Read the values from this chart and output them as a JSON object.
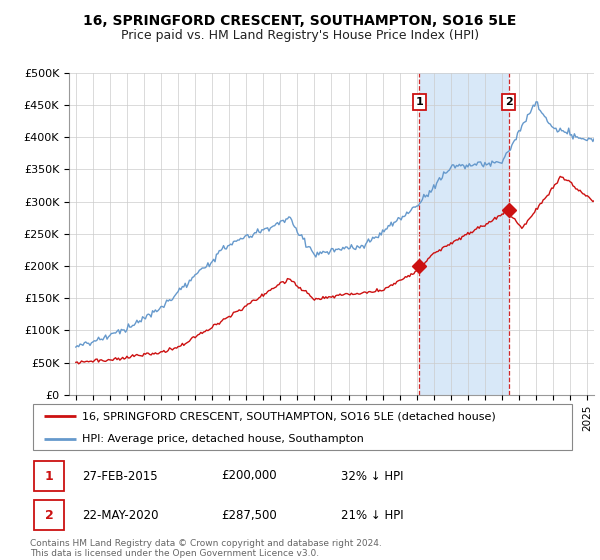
{
  "title": "16, SPRINGFORD CRESCENT, SOUTHAMPTON, SO16 5LE",
  "subtitle": "Price paid vs. HM Land Registry's House Price Index (HPI)",
  "title_fontsize": 10,
  "subtitle_fontsize": 9,
  "ylim": [
    0,
    500000
  ],
  "yticks": [
    0,
    50000,
    100000,
    150000,
    200000,
    250000,
    300000,
    350000,
    400000,
    450000,
    500000
  ],
  "ytick_labels": [
    "£0",
    "£50K",
    "£100K",
    "£150K",
    "£200K",
    "£250K",
    "£300K",
    "£350K",
    "£400K",
    "£450K",
    "£500K"
  ],
  "hpi_color": "#6699cc",
  "price_color": "#cc1111",
  "annotation_border": "#cc1111",
  "purchases": [
    {
      "date_num": 2015.15,
      "price": 200000,
      "label": "1"
    },
    {
      "date_num": 2020.39,
      "price": 287500,
      "label": "2"
    }
  ],
  "legend_entries": [
    "16, SPRINGFORD CRESCENT, SOUTHAMPTON, SO16 5LE (detached house)",
    "HPI: Average price, detached house, Southampton"
  ],
  "annotation_table": [
    {
      "num": "1",
      "date": "27-FEB-2015",
      "price": "£200,000",
      "hpi": "32% ↓ HPI"
    },
    {
      "num": "2",
      "date": "22-MAY-2020",
      "price": "£287,500",
      "hpi": "21% ↓ HPI"
    }
  ],
  "footer": "Contains HM Land Registry data © Crown copyright and database right 2024.\nThis data is licensed under the Open Government Licence v3.0.",
  "background_color": "#ffffff",
  "plot_bg_color": "#ffffff",
  "grid_color": "#cccccc",
  "shaded_region_color": "#d8e8f8",
  "shaded_x_start": 2015.15,
  "shaded_x_end": 2020.39,
  "xlim_start": 1994.6,
  "xlim_end": 2025.4
}
